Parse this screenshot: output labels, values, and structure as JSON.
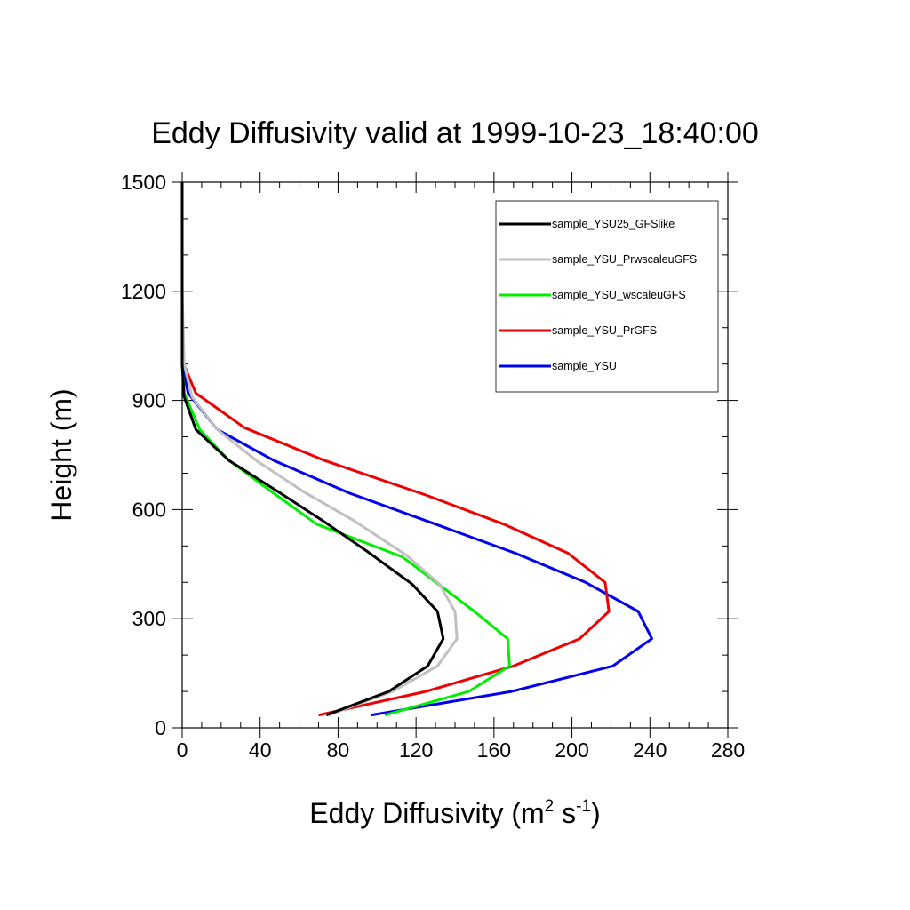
{
  "chart_data": {
    "type": "line",
    "title": "Eddy Diffusivity valid at 1999-10-23_18:40:00",
    "xlabel": {
      "base": "Eddy Diffusivity (m",
      "sup1": "2",
      "mid": " s",
      "sup2": "-1",
      "end": ")"
    },
    "ylabel": "Height (m)",
    "xlim": [
      0,
      280
    ],
    "ylim": [
      0,
      1500
    ],
    "x_ticks": [
      0,
      40,
      80,
      120,
      160,
      200,
      240,
      280
    ],
    "y_ticks": [
      0,
      300,
      600,
      900,
      1200,
      1500
    ],
    "x_minor_step": 10,
    "y_minor_step": 100,
    "grid": false,
    "legend_position": "top-right",
    "series": [
      {
        "name": "sample_YSU25_GFSlike",
        "color": "#000000",
        "x": [
          74,
          106,
          126,
          134,
          131,
          118,
          95,
          72,
          49,
          24,
          7,
          1,
          0,
          0,
          0
        ],
        "y": [
          35,
          100,
          170,
          245,
          320,
          395,
          485,
          570,
          650,
          735,
          820,
          910,
          1000,
          1200,
          1500
        ]
      },
      {
        "name": "sample_YSU_PrwscaleuGFS",
        "color": "#c0c0c0",
        "x": [
          75,
          108,
          131,
          141,
          140,
          132,
          115,
          88,
          62,
          38,
          18,
          5,
          1,
          0,
          0
        ],
        "y": [
          35,
          100,
          170,
          245,
          320,
          395,
          475,
          570,
          650,
          735,
          820,
          910,
          1000,
          1200,
          1500
        ]
      },
      {
        "name": "sample_YSU_wscaleuGFS",
        "color": "#00ee00",
        "x": [
          104,
          147,
          168,
          167,
          150,
          113,
          69,
          47,
          24,
          9,
          1,
          0,
          0
        ],
        "y": [
          35,
          100,
          170,
          245,
          320,
          470,
          560,
          645,
          735,
          820,
          920,
          1000,
          1500
        ]
      },
      {
        "name": "sample_YSU_PrGFS",
        "color": "#ee0000",
        "x": [
          70,
          125,
          170,
          204,
          219,
          217,
          198,
          165,
          125,
          73,
          32,
          7,
          0,
          0
        ],
        "y": [
          35,
          100,
          170,
          245,
          320,
          400,
          480,
          560,
          640,
          735,
          825,
          920,
          1010,
          1500
        ]
      },
      {
        "name": "sample_YSU",
        "color": "#0000ee",
        "x": [
          97,
          169,
          221,
          241,
          234,
          207,
          171,
          130,
          86,
          47,
          18,
          3,
          0,
          0
        ],
        "y": [
          35,
          100,
          170,
          245,
          320,
          400,
          480,
          560,
          645,
          735,
          820,
          920,
          1000,
          1500
        ]
      }
    ]
  }
}
